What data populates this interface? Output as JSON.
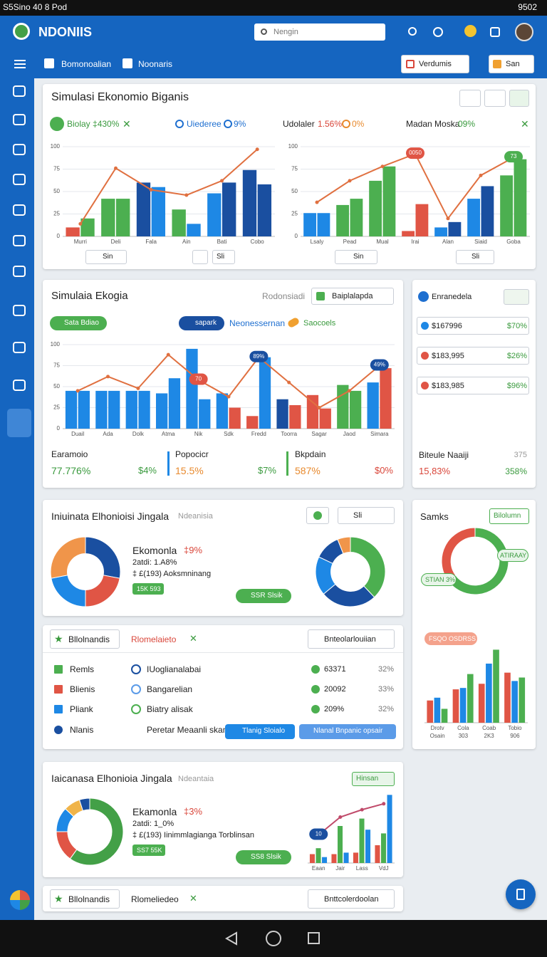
{
  "status_bar": {
    "left": "S5Sino 40 8 Pod",
    "time": "9502"
  },
  "app_bar": {
    "brand": "NDONIIS",
    "search": "Nengin"
  },
  "toolbar": {
    "tabs": [
      "Bomonoalian",
      "Noonaris"
    ],
    "dropdowns": [
      "Verdumis",
      "San"
    ]
  },
  "panel_1": {
    "title": "Simulasi Ekonomio Biganis",
    "legend": [
      "Biolay ‡430%",
      "Uiederee",
      "9%",
      "Udolaler",
      "1.56%",
      "0%",
      "Madan Moska",
      "09%"
    ],
    "chart_left": {
      "type": "combo",
      "categories": [
        "Murri",
        "Deli",
        "Fala",
        "Ain",
        "Bati",
        "Cobo"
      ],
      "ylim": [
        0,
        100
      ],
      "yticks": [
        0,
        25,
        50,
        75,
        100
      ],
      "series": [
        {
          "type": "bar",
          "colors": [
            "#e05545",
            "#4caf50",
            "#1a4fa0",
            "#4caf50",
            "#1e88e5",
            "#1a4fa0"
          ],
          "values": [
            10,
            42,
            60,
            30,
            48,
            74
          ]
        },
        {
          "type": "bar",
          "colors": [
            "#4caf50",
            "#4caf50",
            "#1e88e5",
            "#1e88e5",
            "#1a4fa0",
            "#1a4fa0"
          ],
          "values": [
            20,
            42,
            55,
            14,
            60,
            58
          ]
        },
        {
          "type": "line",
          "color": "#e07040",
          "values": [
            14,
            76,
            52,
            46,
            62,
            97
          ]
        }
      ]
    },
    "chart_right": {
      "type": "combo",
      "categories": [
        "Lsaly",
        "Pead",
        "Mual",
        "Irai",
        "Alan",
        "Siaid",
        "Goba"
      ],
      "ylim": [
        0,
        100
      ],
      "yticks": [
        0,
        25,
        50,
        75,
        100
      ],
      "series": [
        {
          "type": "bar",
          "colors": [
            "#1e88e5",
            "#4caf50",
            "#4caf50",
            "#e05545",
            "#1e88e5",
            "#1e88e5",
            "#4caf50"
          ],
          "values": [
            26,
            35,
            62,
            6,
            10,
            42,
            68
          ]
        },
        {
          "type": "bar",
          "colors": [
            "#1e88e5",
            "#4caf50",
            "#4caf50",
            "#e05545",
            "#1a4fa0",
            "#1a4fa0",
            "#4caf50"
          ],
          "values": [
            26,
            42,
            78,
            36,
            16,
            56,
            86
          ]
        },
        {
          "type": "line",
          "color": "#e07040",
          "values": [
            38,
            62,
            78,
            92,
            20,
            68,
            88
          ]
        }
      ],
      "annotations": [
        {
          "text": "0050",
          "color": "#e05545"
        },
        {
          "text": "73",
          "color": "#4caf50"
        }
      ]
    },
    "controls": [
      "Sin",
      "Sli",
      "Sin",
      "Sli"
    ]
  },
  "panel_2": {
    "title": "Simulaia Ekogia",
    "subtitle": "Rodonsiadi",
    "dropdown": "Baiplalapda",
    "chips": [
      "Sata Bdiao",
      "sapark",
      "Neonessernan",
      "Saocoels"
    ],
    "chart": {
      "type": "combo",
      "categories": [
        "Duail",
        "Ada",
        "Dolk",
        "Atma",
        "Nik",
        "Sdk",
        "Fredd",
        "Toorra",
        "Sagar",
        "Jaod",
        "Simara"
      ],
      "ylim": [
        0,
        100
      ],
      "yticks": [
        0,
        25,
        50,
        75,
        100
      ],
      "series": [
        {
          "type": "bar",
          "colors": [
            "#1e88e5",
            "#1e88e5",
            "#1e88e5",
            "#1e88e5",
            "#1e88e5",
            "#1e88e5",
            "#e05545",
            "#1a4fa0",
            "#e05545",
            "#4caf50",
            "#1e88e5"
          ],
          "values": [
            45,
            45,
            45,
            42,
            95,
            42,
            15,
            35,
            40,
            52,
            55
          ]
        },
        {
          "type": "bar",
          "colors": [
            "#1e88e5",
            "#1e88e5",
            "#1e88e5",
            "#1e88e5",
            "#1e88e5",
            "#e05545",
            "#1e88e5",
            "#e05545",
            "#e05545",
            "#4caf50",
            "#e05545"
          ],
          "values": [
            45,
            45,
            45,
            60,
            35,
            25,
            85,
            28,
            24,
            45,
            72
          ]
        },
        {
          "type": "line",
          "color": "#e07040",
          "values": [
            45,
            62,
            48,
            88,
            58,
            38,
            85,
            55,
            25,
            45,
            75
          ]
        }
      ],
      "annotations": [
        {
          "text": "70",
          "color": "#e05545"
        },
        {
          "text": "89%",
          "color": "#1a4fa0"
        },
        {
          "text": "49%",
          "color": "#1a4fa0"
        }
      ]
    },
    "stats": [
      {
        "label": "Earamoio",
        "value": "77.776%",
        "change": "$4%"
      },
      {
        "label": "Popocicr",
        "value": "15.5%",
        "change": "$7%"
      },
      {
        "label": "Bkpdain",
        "value": "587%",
        "change": "$0%"
      }
    ]
  },
  "side_2": {
    "title": "Enranedela",
    "rows": [
      [
        "$167996",
        "$70%"
      ],
      [
        "$183,995",
        "$26%"
      ],
      [
        "$183,985",
        "$96%"
      ]
    ],
    "footer": {
      "label": "Biteule Naaiji",
      "count": "375",
      "value": "15,83%",
      "change": "358%"
    }
  },
  "panel_3": {
    "title": "Iniuinata Elhonioisi Jingala",
    "subtitle": "Ndeanisia",
    "dropdown": "Sli",
    "heading": "Ekomonla",
    "delta": "‡9%",
    "line_1": "2atdi: 1.A8%",
    "line_2": "‡ £(193) Aoksmninang",
    "badge": "15K 593",
    "button": "SSR Slsik",
    "donut_left": {
      "type": "donut",
      "values": [
        28,
        22,
        22,
        28
      ],
      "colors": [
        "#1a4fa0",
        "#e05545",
        "#1e88e5",
        "#f0954a"
      ]
    },
    "donut_right": {
      "type": "donut",
      "values": [
        38,
        26,
        18,
        12,
        6
      ],
      "colors": [
        "#4caf50",
        "#1a4fa0",
        "#1e88e5",
        "#1a4fa0",
        "#f0954a"
      ]
    }
  },
  "side_3": {
    "title": "Samks",
    "button": "Bilolumn",
    "ring_labels": [
      "ATIRAAY",
      "STIAN 3%"
    ],
    "ring": {
      "type": "donut",
      "values": [
        65,
        35
      ],
      "colors": [
        "#4caf50",
        "#e05545"
      ]
    },
    "chip": "FSQO OSDRSS",
    "chart": {
      "type": "combo",
      "categories": [
        "Drotv",
        "Cola",
        "Coab",
        "Tobio"
      ],
      "sublabels": [
        "Osain",
        "303",
        "2K3",
        "906"
      ],
      "ylim": [
        0,
        130
      ],
      "series": [
        {
          "type": "bar",
          "color": "#e05545",
          "values": [
            32,
            48,
            56,
            72
          ]
        },
        {
          "type": "bar",
          "color": "#1e88e5",
          "values": [
            36,
            50,
            85,
            60
          ]
        },
        {
          "type": "bar",
          "color": "#4caf50",
          "values": [
            20,
            70,
            105,
            65
          ]
        }
      ]
    }
  },
  "panel_4": {
    "tab": "Bllolnandis",
    "tab_2": "Rlomelaieto",
    "dropdown": "Bnteolarlouiian",
    "legend": [
      "Remls",
      "Blienis",
      "Pliank",
      "Nlanis"
    ],
    "items": [
      "IUoglianalabai",
      "Bangarelian",
      "Biatry alisak",
      "Peretar Meaanli skam"
    ],
    "values": [
      [
        "63371",
        "32%"
      ],
      [
        "20092",
        "33%"
      ],
      [
        "209%",
        "32%"
      ]
    ],
    "buttons": [
      "Tlanig Sloialo",
      "Nlanal Bnpanic opsair"
    ]
  },
  "panel_5": {
    "title": "Iaicanasa Elhonioia Jingala",
    "subtitle": "Ndeantaia",
    "dropdown": "Hinsan",
    "heading": "Ekamonla",
    "delta": "‡3%",
    "line_1": "2atdi: 1_0%",
    "line_2": "‡ £(193) Iinimmlagianga Torblinsan",
    "badge": "SS7 55K",
    "button": "SS8 Slsik",
    "donut": {
      "type": "donut",
      "values": [
        60,
        15,
        12,
        8,
        5
      ],
      "colors": [
        "#43a047",
        "#e05545",
        "#1e88e5",
        "#f0b44a",
        "#1a4fa0"
      ]
    },
    "chart": {
      "type": "combo",
      "categories": [
        "Eaan",
        "Jair",
        "Lass",
        "VdJ"
      ],
      "ylim": [
        0,
        100
      ],
      "series": [
        {
          "type": "bar",
          "color": "#e05545",
          "values": [
            12,
            12,
            14,
            24
          ]
        },
        {
          "type": "bar",
          "color": "#4caf50",
          "values": [
            20,
            50,
            60,
            40
          ]
        },
        {
          "type": "bar",
          "color": "#1e88e5",
          "values": [
            8,
            14,
            45,
            92
          ]
        },
        {
          "type": "line",
          "color": "#c04a6a",
          "values": [
            38,
            62,
            72,
            80
          ]
        }
      ],
      "annotations": [
        {
          "text": "10",
          "color": "#1a4fa0"
        }
      ]
    }
  },
  "panel_6": {
    "tab": "Bllolnandis",
    "tab_2": "Rlomeliedeo",
    "dropdown": "Bnttcolerdoolan"
  }
}
